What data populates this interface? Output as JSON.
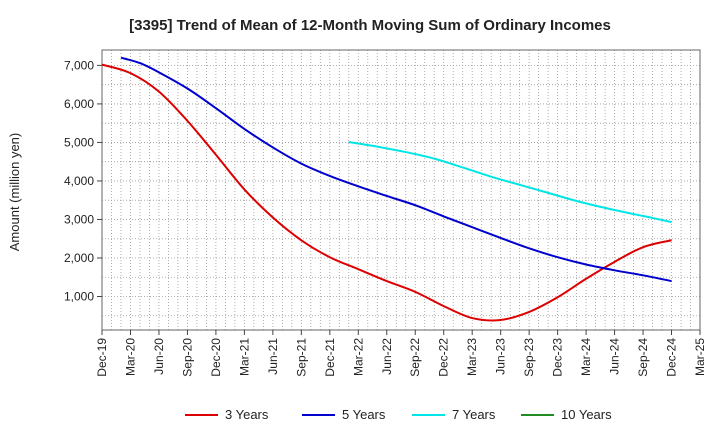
{
  "chart_data": {
    "type": "line",
    "title": "[3395]  Trend of Mean of 12-Month Moving Sum of Ordinary Incomes",
    "xlabel": "",
    "ylabel": "Amount (million yen)",
    "ylim": [
      130,
      7400
    ],
    "yticks": [
      1000,
      2000,
      3000,
      4000,
      5000,
      6000,
      7000
    ],
    "ytick_labels": [
      "1,000",
      "2,000",
      "3,000",
      "4,000",
      "5,000",
      "6,000",
      "7,000"
    ],
    "x_range_months": [
      0,
      63
    ],
    "xticks": [
      {
        "m": 0,
        "label": "Dec-19"
      },
      {
        "m": 3,
        "label": "Mar-20"
      },
      {
        "m": 6,
        "label": "Jun-20"
      },
      {
        "m": 9,
        "label": "Sep-20"
      },
      {
        "m": 12,
        "label": "Dec-20"
      },
      {
        "m": 15,
        "label": "Mar-21"
      },
      {
        "m": 18,
        "label": "Jun-21"
      },
      {
        "m": 21,
        "label": "Sep-21"
      },
      {
        "m": 24,
        "label": "Dec-21"
      },
      {
        "m": 27,
        "label": "Mar-22"
      },
      {
        "m": 30,
        "label": "Jun-22"
      },
      {
        "m": 33,
        "label": "Sep-22"
      },
      {
        "m": 36,
        "label": "Dec-22"
      },
      {
        "m": 39,
        "label": "Mar-23"
      },
      {
        "m": 42,
        "label": "Jun-23"
      },
      {
        "m": 45,
        "label": "Sep-23"
      },
      {
        "m": 48,
        "label": "Dec-23"
      },
      {
        "m": 51,
        "label": "Mar-24"
      },
      {
        "m": 54,
        "label": "Jun-24"
      },
      {
        "m": 57,
        "label": "Sep-24"
      },
      {
        "m": 60,
        "label": "Dec-24"
      },
      {
        "m": 63,
        "label": "Mar-25"
      }
    ],
    "grid": true,
    "legend_position": "bottom",
    "series": [
      {
        "name": "3 Years",
        "color": "#dd0000",
        "points": [
          [
            0,
            7020
          ],
          [
            3,
            6800
          ],
          [
            6,
            6320
          ],
          [
            9,
            5560
          ],
          [
            12,
            4680
          ],
          [
            15,
            3780
          ],
          [
            18,
            3050
          ],
          [
            21,
            2460
          ],
          [
            24,
            2020
          ],
          [
            27,
            1710
          ],
          [
            30,
            1400
          ],
          [
            33,
            1120
          ],
          [
            36,
            750
          ],
          [
            39,
            440
          ],
          [
            42,
            390
          ],
          [
            45,
            600
          ],
          [
            48,
            980
          ],
          [
            51,
            1460
          ],
          [
            54,
            1900
          ],
          [
            57,
            2280
          ],
          [
            60,
            2460
          ]
        ]
      },
      {
        "name": "5 Years",
        "color": "#0000cc",
        "points": [
          [
            2,
            7200
          ],
          [
            4,
            7060
          ],
          [
            6,
            6820
          ],
          [
            9,
            6400
          ],
          [
            12,
            5890
          ],
          [
            15,
            5350
          ],
          [
            18,
            4870
          ],
          [
            21,
            4450
          ],
          [
            24,
            4130
          ],
          [
            27,
            3860
          ],
          [
            30,
            3610
          ],
          [
            33,
            3370
          ],
          [
            36,
            3080
          ],
          [
            39,
            2800
          ],
          [
            42,
            2520
          ],
          [
            45,
            2250
          ],
          [
            48,
            2020
          ],
          [
            51,
            1830
          ],
          [
            54,
            1680
          ],
          [
            57,
            1550
          ],
          [
            60,
            1400
          ]
        ]
      },
      {
        "name": "7 Years",
        "color": "#00e5e5",
        "points": [
          [
            26,
            5010
          ],
          [
            29,
            4890
          ],
          [
            32,
            4750
          ],
          [
            35,
            4580
          ],
          [
            38,
            4350
          ],
          [
            41,
            4110
          ],
          [
            44,
            3900
          ],
          [
            47,
            3690
          ],
          [
            50,
            3480
          ],
          [
            53,
            3300
          ],
          [
            56,
            3140
          ],
          [
            58,
            3040
          ],
          [
            60,
            2930
          ]
        ]
      },
      {
        "name": "10 Years",
        "color": "#228b22",
        "points": []
      }
    ]
  }
}
